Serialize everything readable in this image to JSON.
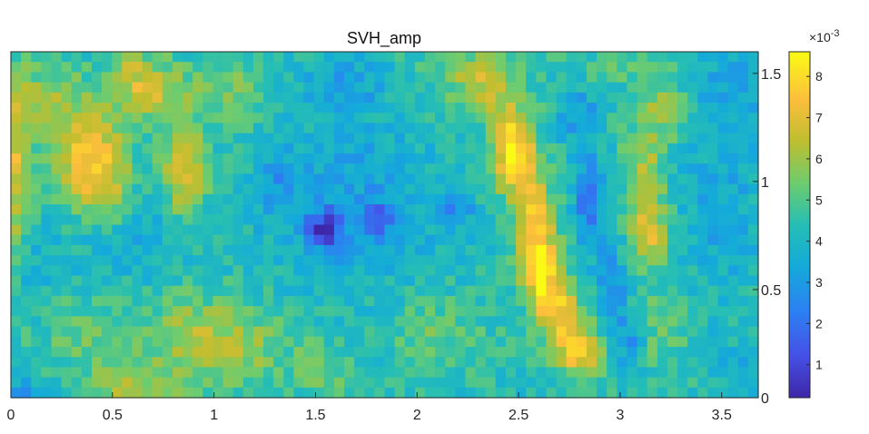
{
  "chart_data": {
    "type": "heatmap",
    "title": "SVH_amp",
    "xlabel": "",
    "ylabel": "",
    "xlim": [
      0,
      3.68
    ],
    "ylim": [
      0,
      1.6
    ],
    "x_ticks": [
      0,
      0.5,
      1,
      1.5,
      2,
      2.5,
      3,
      3.5
    ],
    "x_tick_labels": [
      "0",
      "0.5",
      "1",
      "1.5",
      "2",
      "2.5",
      "3",
      "3.5"
    ],
    "y_ticks": [
      0,
      0.5,
      1,
      1.5
    ],
    "y_tick_labels": [
      "0",
      "0.5",
      "1",
      "1.5"
    ],
    "y_axis_location": "right",
    "grid": false,
    "colormap": "parula",
    "colorbar": {
      "location": "right",
      "multiplier_label": "×10",
      "multiplier_exponent": "-3",
      "clim": [
        0.2,
        8.6
      ],
      "ticks": [
        1,
        2,
        3,
        4,
        5,
        6,
        7,
        8
      ],
      "tick_labels": [
        "1",
        "2",
        "3",
        "4",
        "5",
        "6",
        "7",
        "8"
      ]
    },
    "grid_size": {
      "cols": 74,
      "rows": 34
    },
    "baseline_value": 4.3,
    "features": [
      {
        "x": 0.02,
        "y": 1.1,
        "sx": 0.06,
        "sy": 0.3,
        "amp": 2.6
      },
      {
        "x": 0.38,
        "y": 1.15,
        "sx": 0.12,
        "sy": 0.14,
        "amp": 3.0
      },
      {
        "x": 0.45,
        "y": 0.95,
        "sx": 0.1,
        "sy": 0.12,
        "amp": 2.0
      },
      {
        "x": 0.6,
        "y": 1.48,
        "sx": 0.1,
        "sy": 0.1,
        "amp": 1.8
      },
      {
        "x": 0.85,
        "y": 1.05,
        "sx": 0.08,
        "sy": 0.15,
        "amp": 2.6
      },
      {
        "x": 0.75,
        "y": 1.4,
        "sx": 0.12,
        "sy": 0.1,
        "amp": 1.5
      },
      {
        "x": 0.2,
        "y": 1.4,
        "sx": 0.12,
        "sy": 0.1,
        "amp": 1.3
      },
      {
        "x": 0.6,
        "y": 0.05,
        "sx": 0.15,
        "sy": 0.08,
        "amp": 1.8
      },
      {
        "x": 0.9,
        "y": 0.3,
        "sx": 0.18,
        "sy": 0.15,
        "amp": 1.4
      },
      {
        "x": 1.15,
        "y": 0.22,
        "sx": 0.18,
        "sy": 0.12,
        "amp": 1.2
      },
      {
        "x": 0.35,
        "y": 0.3,
        "sx": 0.15,
        "sy": 0.12,
        "amp": 1.0
      },
      {
        "x": 1.1,
        "y": 1.4,
        "sx": 0.12,
        "sy": 0.12,
        "amp": 1.2
      },
      {
        "x": 1.55,
        "y": 0.12,
        "sx": 0.1,
        "sy": 0.1,
        "amp": 1.0
      },
      {
        "x": 2.1,
        "y": 0.3,
        "sx": 0.15,
        "sy": 0.12,
        "amp": 1.0
      },
      {
        "x": 2.25,
        "y": 1.5,
        "sx": 0.2,
        "sy": 0.1,
        "amp": 1.0
      },
      {
        "x": 2.32,
        "y": 1.45,
        "sx": 0.08,
        "sy": 0.1,
        "amp": 1.4
      },
      {
        "x": 2.45,
        "y": 1.2,
        "sx": 0.07,
        "sy": 0.15,
        "amp": 2.3
      },
      {
        "x": 2.5,
        "y": 1.1,
        "sx": 0.07,
        "sy": 0.12,
        "amp": 2.6
      },
      {
        "x": 2.58,
        "y": 0.8,
        "sx": 0.07,
        "sy": 0.15,
        "amp": 3.0
      },
      {
        "x": 2.6,
        "y": 0.6,
        "sx": 0.06,
        "sy": 0.1,
        "amp": 2.7
      },
      {
        "x": 2.68,
        "y": 0.42,
        "sx": 0.08,
        "sy": 0.12,
        "amp": 3.1
      },
      {
        "x": 2.8,
        "y": 0.22,
        "sx": 0.08,
        "sy": 0.1,
        "amp": 3.0
      },
      {
        "x": 3.12,
        "y": 1.0,
        "sx": 0.07,
        "sy": 0.2,
        "amp": 2.0
      },
      {
        "x": 3.15,
        "y": 0.75,
        "sx": 0.06,
        "sy": 0.1,
        "amp": 1.9
      },
      {
        "x": 3.22,
        "y": 1.35,
        "sx": 0.08,
        "sy": 0.12,
        "amp": 1.3
      },
      {
        "x": 3.2,
        "y": 0.3,
        "sx": 0.08,
        "sy": 0.15,
        "amp": 1.0
      },
      {
        "x": 3.0,
        "y": 1.55,
        "sx": 0.2,
        "sy": 0.08,
        "amp": 0.6
      },
      {
        "x": 1.55,
        "y": 0.78,
        "sx": 0.06,
        "sy": 0.06,
        "amp": -3.3
      },
      {
        "x": 1.8,
        "y": 0.82,
        "sx": 0.05,
        "sy": 0.05,
        "amp": -2.2
      },
      {
        "x": 2.2,
        "y": 0.85,
        "sx": 0.05,
        "sy": 0.05,
        "amp": -1.6
      },
      {
        "x": 1.7,
        "y": 0.9,
        "sx": 0.3,
        "sy": 0.25,
        "amp": -1.2
      },
      {
        "x": 2.85,
        "y": 0.9,
        "sx": 0.05,
        "sy": 0.15,
        "amp": -2.3
      },
      {
        "x": 2.95,
        "y": 0.5,
        "sx": 0.05,
        "sy": 0.15,
        "amp": -1.7
      },
      {
        "x": 3.05,
        "y": 0.25,
        "sx": 0.05,
        "sy": 0.1,
        "amp": -1.4
      },
      {
        "x": 2.8,
        "y": 1.3,
        "sx": 0.07,
        "sy": 0.1,
        "amp": -1.4
      },
      {
        "x": 1.65,
        "y": 1.45,
        "sx": 0.15,
        "sy": 0.1,
        "amp": -1.1
      },
      {
        "x": 1.3,
        "y": 1.0,
        "sx": 0.06,
        "sy": 0.12,
        "amp": -1.0
      },
      {
        "x": 3.5,
        "y": 0.9,
        "sx": 0.15,
        "sy": 0.3,
        "amp": -0.9
      },
      {
        "x": 3.55,
        "y": 1.45,
        "sx": 0.15,
        "sy": 0.12,
        "amp": -0.8
      },
      {
        "x": 3.6,
        "y": 0.15,
        "sx": 0.08,
        "sy": 0.08,
        "amp": -0.6
      },
      {
        "x": 0.05,
        "y": 0.02,
        "sx": 0.08,
        "sy": 0.03,
        "amp": -2.4
      },
      {
        "x": 0.6,
        "y": 0.75,
        "sx": 0.2,
        "sy": 0.15,
        "amp": -0.8
      },
      {
        "x": 0.1,
        "y": 0.6,
        "sx": 0.12,
        "sy": 0.12,
        "amp": -0.6
      }
    ]
  }
}
